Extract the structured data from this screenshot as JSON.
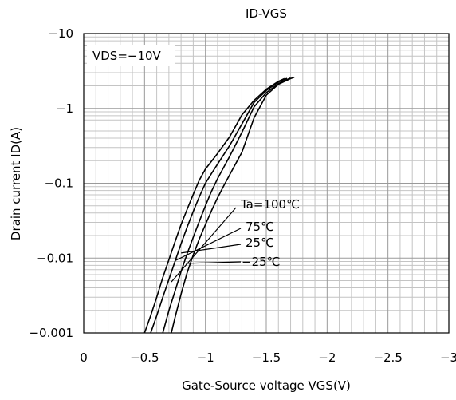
{
  "chart_data": {
    "type": "line",
    "title": "ID-VGS",
    "xlabel": "Gate-Source voltage VGS(V)",
    "ylabel": "Drain current ID(A)",
    "x_scale": "linear",
    "y_scale": "log",
    "xlim": [
      0,
      -3
    ],
    "ylim": [
      -0.001,
      -10
    ],
    "x_ticks": [
      "0",
      "−0.5",
      "−1",
      "−1.5",
      "−2",
      "−2.5",
      "−3"
    ],
    "y_ticks": [
      "−0.001",
      "−0.01",
      "−0.1",
      "−1",
      "−10"
    ],
    "grid": true,
    "condition": "VDS=−10V",
    "series": [
      {
        "name": "Ta=100℃",
        "label": "Ta=100℃",
        "x": [
          -0.5,
          -0.55,
          -0.6,
          -0.65,
          -0.7,
          -0.75,
          -0.8,
          -0.85,
          -0.9,
          -0.95,
          -1.0,
          -1.1,
          -1.2,
          -1.3,
          -1.4,
          -1.5,
          -1.6,
          -1.65
        ],
        "y": [
          -0.001,
          -0.0017,
          -0.003,
          -0.0055,
          -0.0095,
          -0.0165,
          -0.028,
          -0.045,
          -0.071,
          -0.11,
          -0.155,
          -0.25,
          -0.42,
          -0.82,
          -1.28,
          -1.8,
          -2.3,
          -2.5
        ]
      },
      {
        "name": "75℃",
        "label": "75℃",
        "x": [
          -0.55,
          -0.6,
          -0.65,
          -0.7,
          -0.75,
          -0.8,
          -0.85,
          -0.9,
          -0.95,
          -1.0,
          -1.05,
          -1.1,
          -1.2,
          -1.3,
          -1.4,
          -1.5,
          -1.6,
          -1.67
        ],
        "y": [
          -0.001,
          -0.0017,
          -0.003,
          -0.0052,
          -0.009,
          -0.0155,
          -0.026,
          -0.042,
          -0.066,
          -0.1,
          -0.135,
          -0.18,
          -0.32,
          -0.62,
          -1.2,
          -1.73,
          -2.25,
          -2.52
        ]
      },
      {
        "name": "25℃",
        "label": "25℃",
        "x": [
          -0.65,
          -0.7,
          -0.75,
          -0.8,
          -0.85,
          -0.9,
          -0.95,
          -1.0,
          -1.05,
          -1.1,
          -1.2,
          -1.3,
          -1.4,
          -1.5,
          -1.6,
          -1.7
        ],
        "y": [
          -0.001,
          -0.002,
          -0.0036,
          -0.0066,
          -0.0115,
          -0.019,
          -0.031,
          -0.05,
          -0.078,
          -0.115,
          -0.23,
          -0.48,
          -1.05,
          -1.62,
          -2.15,
          -2.55
        ]
      },
      {
        "name": "−25℃",
        "label": "−25℃",
        "x": [
          -0.72,
          -0.75,
          -0.8,
          -0.85,
          -0.9,
          -0.95,
          -1.0,
          -1.05,
          -1.1,
          -1.15,
          -1.2,
          -1.3,
          -1.4,
          -1.5,
          -1.6,
          -1.7,
          -1.73
        ],
        "y": [
          -0.001,
          -0.0016,
          -0.0033,
          -0.0064,
          -0.011,
          -0.018,
          -0.028,
          -0.043,
          -0.064,
          -0.092,
          -0.13,
          -0.26,
          -0.75,
          -1.5,
          -2.1,
          -2.5,
          -2.6
        ]
      }
    ],
    "annotations": [
      {
        "series": "Ta=100℃",
        "x": -0.72,
        "y": -0.0048,
        "text": "Ta=100℃"
      },
      {
        "series": "75℃",
        "x": -0.75,
        "y": -0.0092,
        "text": "75℃"
      },
      {
        "series": "25℃",
        "x": -0.8,
        "y": -0.0117,
        "text": "25℃"
      },
      {
        "series": "−25℃",
        "x": -0.84,
        "y": -0.0085,
        "text": "−25℃"
      }
    ]
  }
}
